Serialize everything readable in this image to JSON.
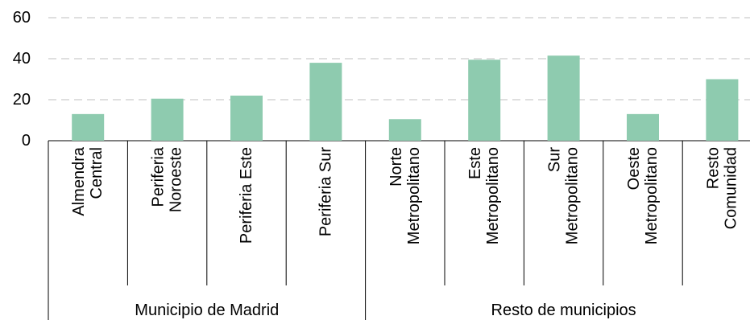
{
  "chart_data": {
    "type": "bar",
    "groups": [
      {
        "name": "Municipio de Madrid",
        "categories": [
          "Almendra\nCentral",
          "Periferia\nNoroeste",
          "Periferia Este",
          "Periferia Sur"
        ]
      },
      {
        "name": "Resto de municipios",
        "categories": [
          "Norte\nMetropolitano",
          "Este\nMetropolitano",
          "Sur\nMetropolitano",
          "Oeste\nMetropolitano",
          "Resto\nComunidad"
        ]
      }
    ],
    "values": [
      13,
      20.5,
      22,
      38,
      10.5,
      39.5,
      41.5,
      13,
      30
    ],
    "color": "#8ecbaf",
    "ylim": [
      0,
      60
    ],
    "yticks": [
      0,
      20,
      40,
      60
    ],
    "grid": true
  }
}
